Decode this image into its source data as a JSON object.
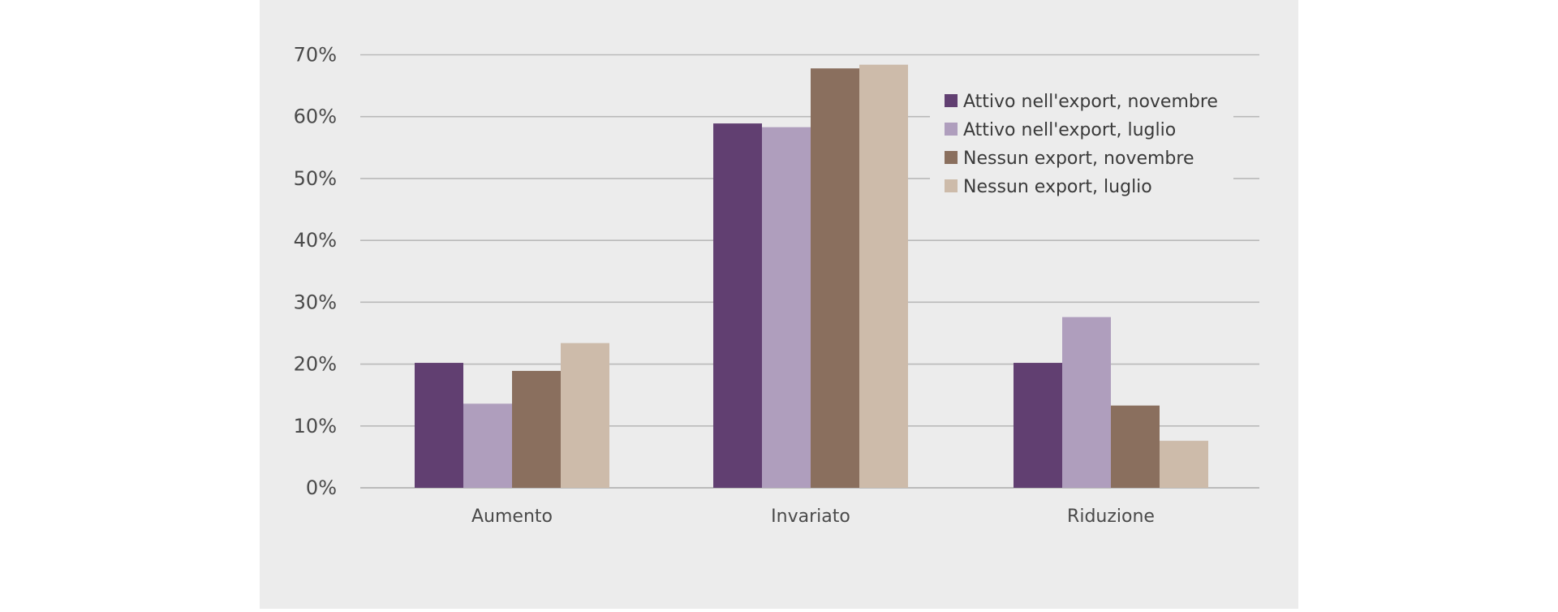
{
  "chart_data": {
    "type": "bar",
    "categories": [
      "Aumento",
      "Invariato",
      "Riduzione"
    ],
    "series": [
      {
        "name": "Attivo nell'export, novembre",
        "color": "#613f71",
        "values": [
          20.2,
          58.9,
          20.2
        ]
      },
      {
        "name": "Attivo nell'export, luglio",
        "color": "#af9ebd",
        "values": [
          13.6,
          58.3,
          27.6
        ]
      },
      {
        "name": "Nessun export, novembre",
        "color": "#8a6f5e",
        "values": [
          18.9,
          67.8,
          13.3
        ]
      },
      {
        "name": "Nessun export, luglio",
        "color": "#cdbbaa",
        "values": [
          23.4,
          68.4,
          7.6
        ]
      }
    ],
    "yticks": [
      "0%",
      "10%",
      "20%",
      "30%",
      "40%",
      "50%",
      "60%",
      "70%"
    ],
    "ylim": [
      0,
      70
    ],
    "grid": true,
    "legend": "top-right",
    "title": "",
    "xlabel": "",
    "ylabel": ""
  }
}
